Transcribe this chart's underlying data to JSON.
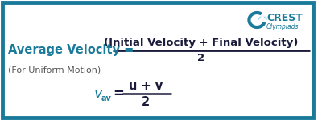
{
  "bg_color": "#ffffff",
  "border_color": "#1a7a9a",
  "border_linewidth": 3.5,
  "title_color": "#1a7a9a",
  "formula_color": "#1a1a3a",
  "sub_color": "#555555",
  "symbolic_color": "#1a7a9a",
  "avg_vel_label": "Average Velocity =",
  "numerator_text": "(Initial Velocity + Final Velocity)",
  "denominator_text": "2",
  "sub_label": "(For Uniform Motion)",
  "sym_num": "u + v",
  "sym_den": "2",
  "crest_text": "CREST",
  "crest_sub": "Olympiads",
  "figsize": [
    4.0,
    1.5
  ],
  "dpi": 100
}
